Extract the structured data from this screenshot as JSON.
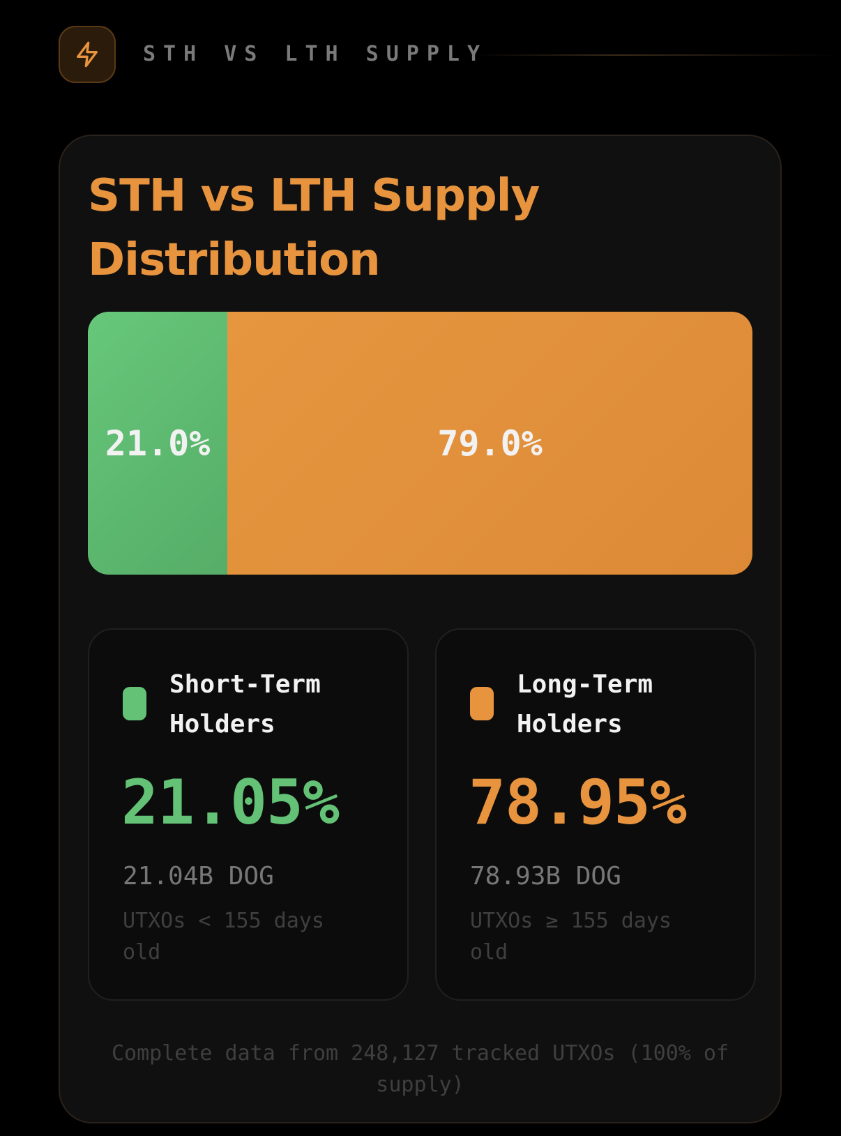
{
  "header": {
    "icon": "lightning-bolt-icon",
    "title": "STH VS LTH SUPPLY"
  },
  "card": {
    "title": "STH vs LTH Supply Distribution",
    "bar": {
      "sth_label": "21.0%",
      "lth_label": "79.0%",
      "sth_fraction": 0.21,
      "lth_fraction": 0.79
    },
    "short_term": {
      "label": "Short-Term Holders",
      "percent": "21.05%",
      "amount": "21.04B DOG",
      "description": "UTXOs < 155 days old",
      "color": "#63c276"
    },
    "long_term": {
      "label": "Long-Term Holders",
      "percent": "78.95%",
      "amount": "78.93B DOG",
      "description": "UTXOs ≥ 155 days old",
      "color": "#e8943f"
    },
    "footnote": "Complete data from 248,127 tracked UTXOs (100% of supply)"
  }
}
